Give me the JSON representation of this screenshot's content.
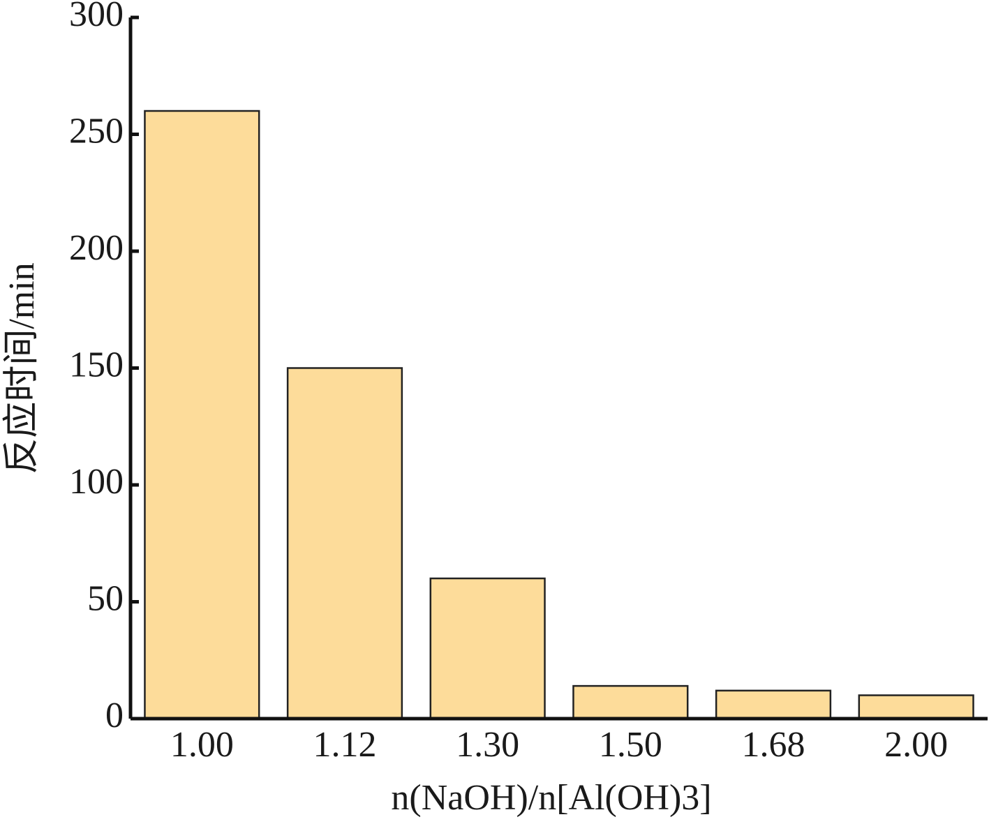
{
  "chart_data": {
    "type": "bar",
    "categories": [
      "1.00",
      "1.12",
      "1.30",
      "1.50",
      "1.68",
      "2.00"
    ],
    "values": [
      260,
      150,
      60,
      14,
      12,
      10
    ],
    "color": "#fddc9a",
    "ylim": [
      0,
      300
    ],
    "yticks": [
      0,
      50,
      100,
      150,
      200,
      250,
      300
    ],
    "x_label": "n(NaOH)/n[Al(OH)3]",
    "y_label": "反应时间/min",
    "grid": false
  }
}
